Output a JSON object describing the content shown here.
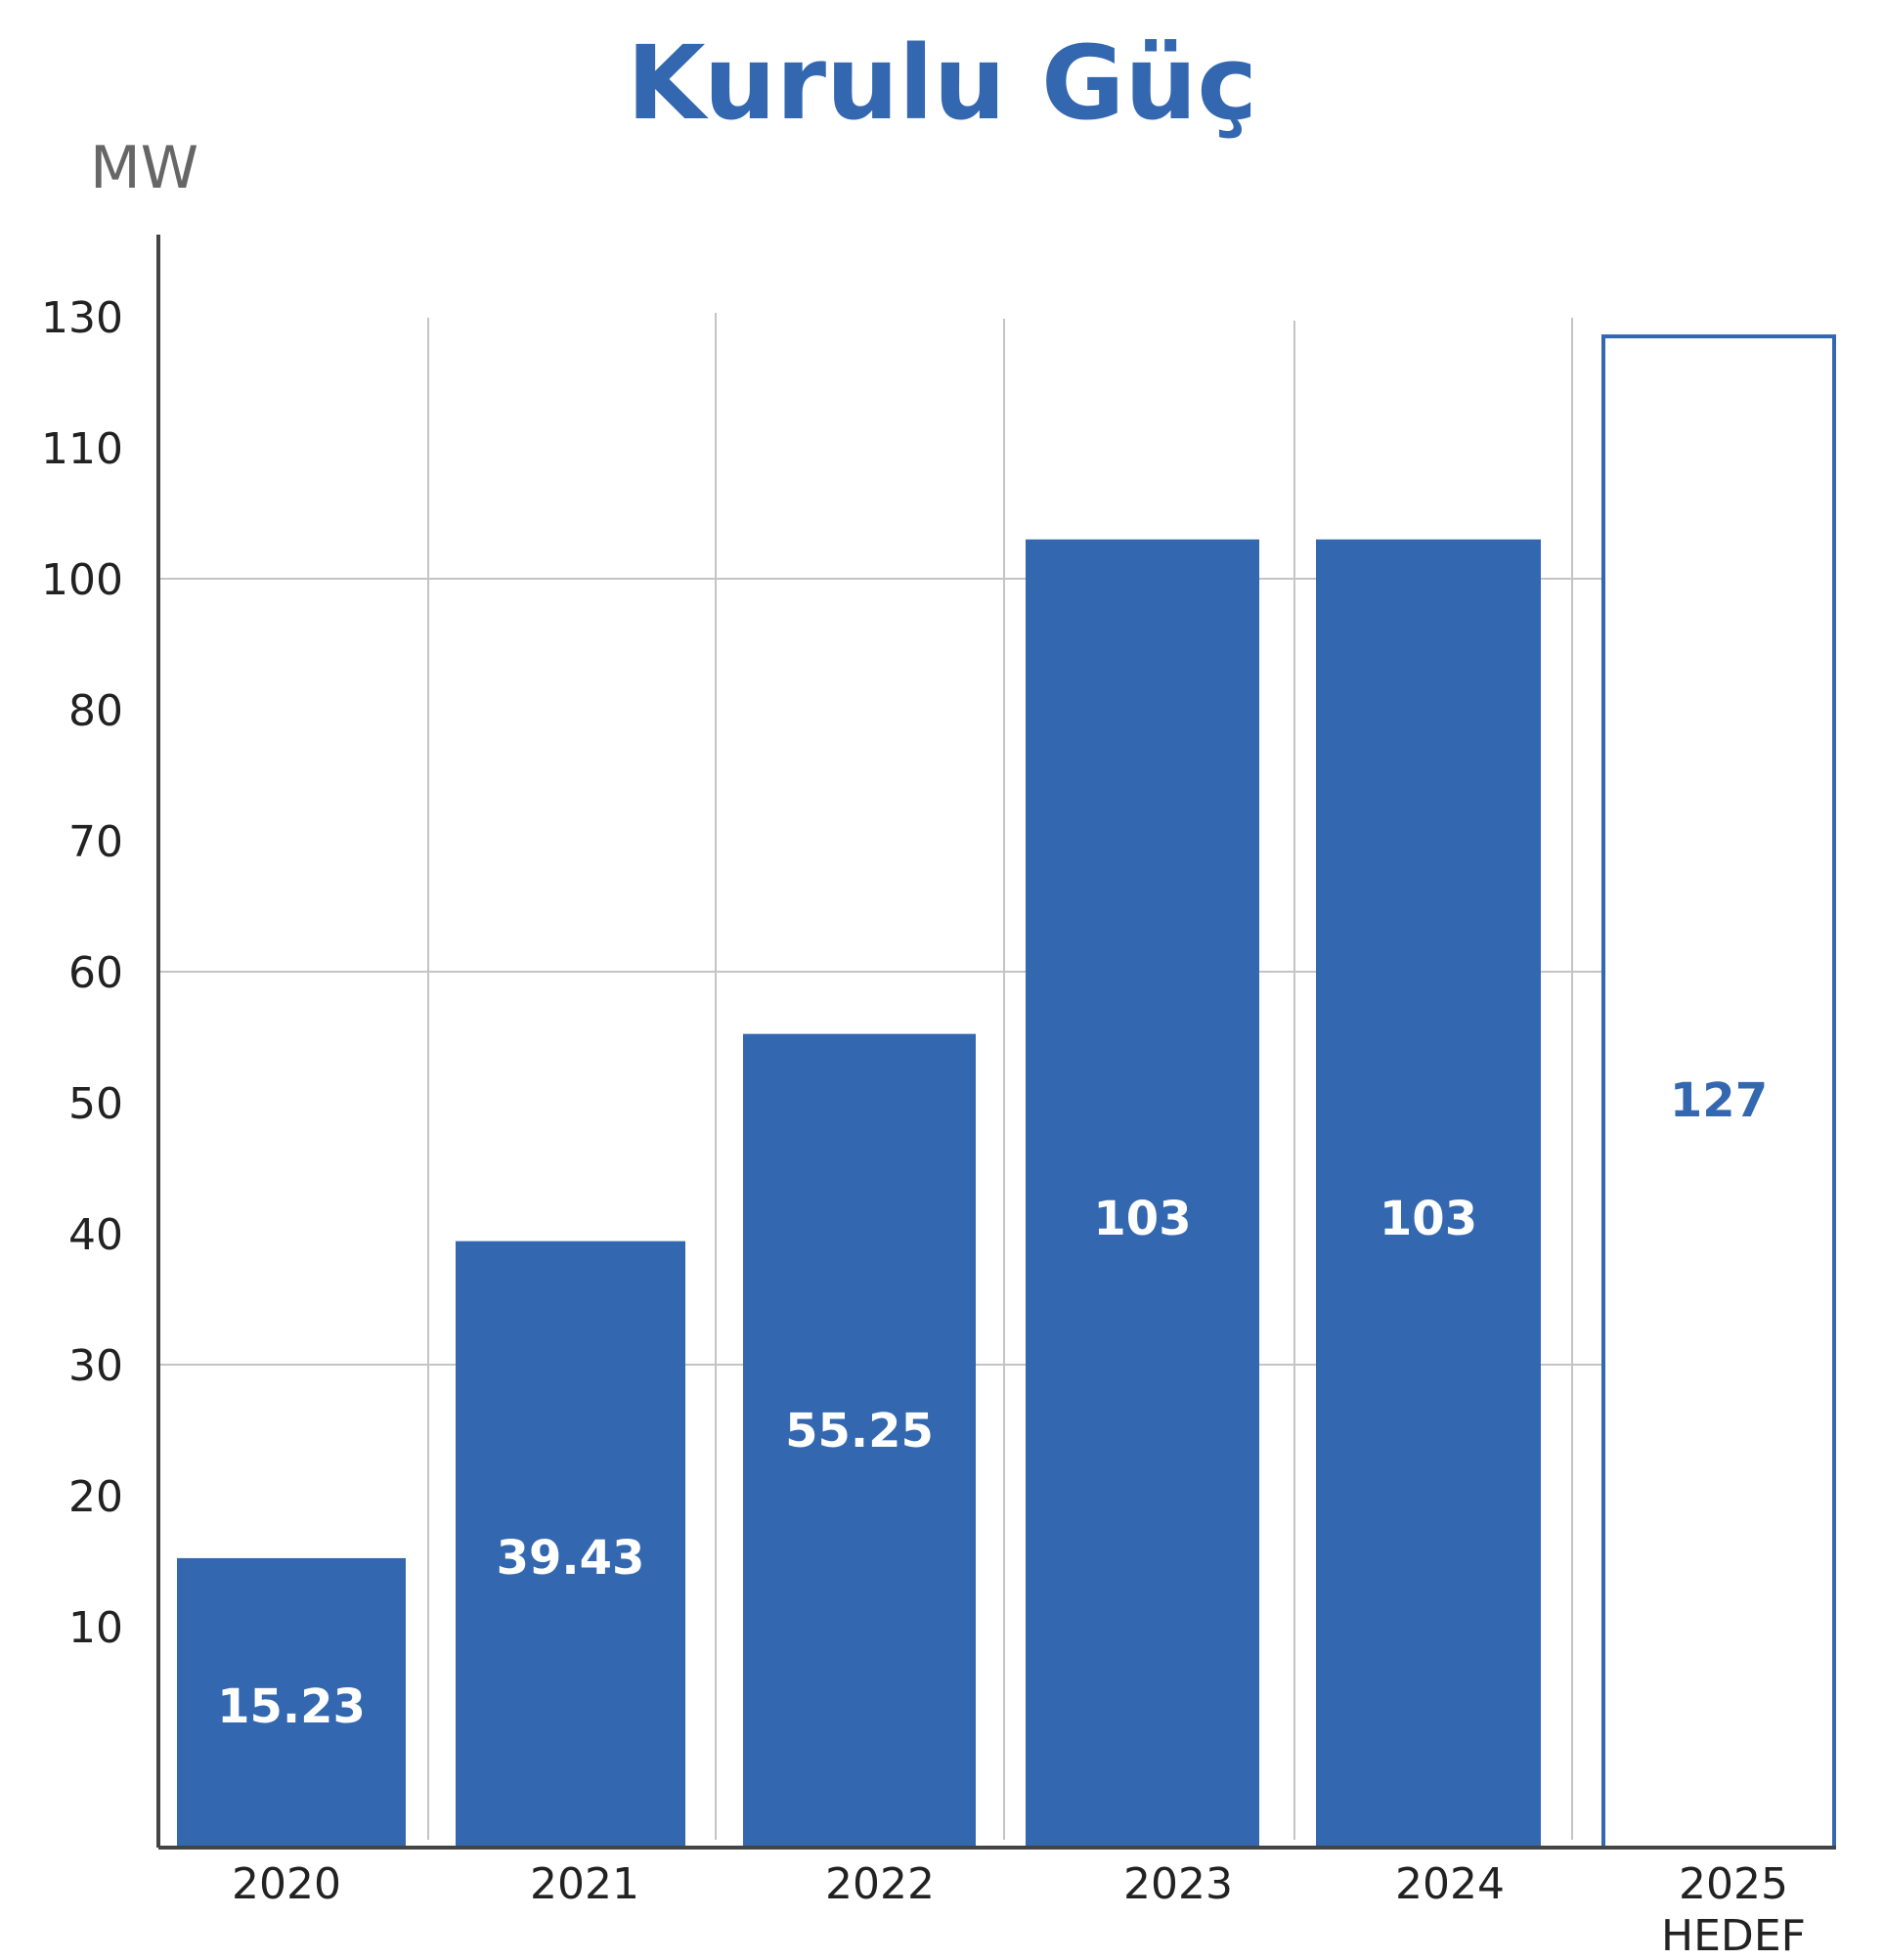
{
  "chart_data": {
    "type": "bar",
    "title": "Kurulu Güç",
    "ylabel": "MW",
    "xlabel": "",
    "categories": [
      "2020",
      "2021",
      "2022",
      "2023",
      "2024",
      "2025"
    ],
    "category_sublabels": [
      "",
      "",
      "",
      "",
      "",
      "HEDEF"
    ],
    "values": [
      15.23,
      39.43,
      55.25,
      103,
      103,
      127
    ],
    "value_labels": [
      "15.23",
      "39.43",
      "55.25",
      "103",
      "103",
      "127"
    ],
    "bar_styles": [
      "filled",
      "filled",
      "filled",
      "filled",
      "filled",
      "outline"
    ],
    "yticks": [
      "10",
      "20",
      "30",
      "40",
      "50",
      "60",
      "70",
      "80",
      "100",
      "110",
      "130"
    ],
    "grid": true,
    "colors": {
      "bar": "#3368b0",
      "title": "#3368b0",
      "grid": "#c4c4c4",
      "axis": "#444444",
      "tick_text": "#222222",
      "unit_text": "#666666",
      "bar_label": "#ffffff"
    }
  }
}
